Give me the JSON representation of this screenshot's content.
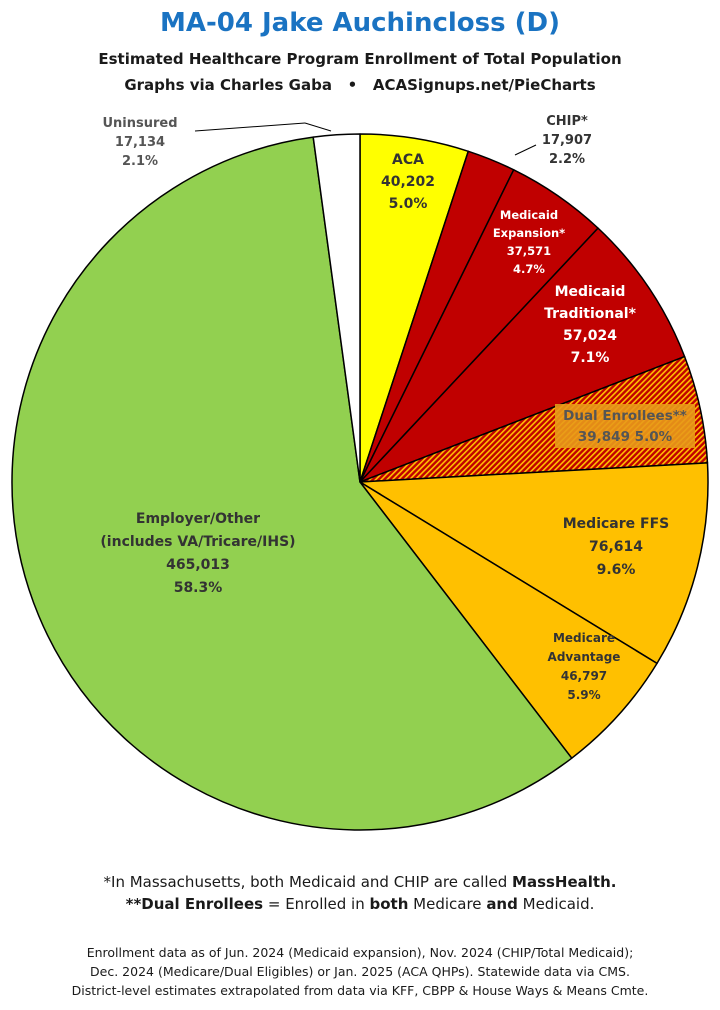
{
  "header": {
    "title": "MA-04 Jake Auchincloss (D)",
    "subtitle": "Estimated Healthcare Program Enrollment of Total Population",
    "credit_left": "Graphs via Charles Gaba",
    "credit_sep": "•",
    "credit_right": "ACASignups.net/PieCharts"
  },
  "chart_data": {
    "type": "pie",
    "title": "MA-04 Jake Auchincloss (D)",
    "subtitle": "Estimated Healthcare Program Enrollment of Total Population",
    "start_angle_deg": 0,
    "direction": "clockwise",
    "slices": [
      {
        "label": "ACA",
        "lines": [
          "ACA",
          "40,202",
          "5.0%"
        ],
        "value": 40202,
        "percent": 5.0,
        "color": "#ffff00"
      },
      {
        "label": "CHIP*",
        "lines": [
          "CHIP*",
          "17,907",
          "2.2%"
        ],
        "value": 17907,
        "percent": 2.2,
        "color": "#c00000"
      },
      {
        "label": "Medicaid Expansion*",
        "lines": [
          "Medicaid",
          "Expansion*",
          "37,571",
          "4.7%"
        ],
        "value": 37571,
        "percent": 4.7,
        "color": "#c00000"
      },
      {
        "label": "Medicaid Traditional*",
        "lines": [
          "Medicaid",
          "Traditional*",
          "57,024",
          "7.1%"
        ],
        "value": 57024,
        "percent": 7.1,
        "color": "#c00000"
      },
      {
        "label": "Dual Enrollees**",
        "lines": [
          "Dual Enrollees**",
          "39,849 5.0%"
        ],
        "value": 39849,
        "percent": 5.0,
        "color": "#c00000",
        "hatch_color": "#ffc000"
      },
      {
        "label": "Medicare FFS",
        "lines": [
          "Medicare FFS",
          "76,614",
          "9.6%"
        ],
        "value": 76614,
        "percent": 9.6,
        "color": "#ffc000"
      },
      {
        "label": "Medicare Advantage",
        "lines": [
          "Medicare",
          "Advantage",
          "46,797",
          "5.9%"
        ],
        "value": 46797,
        "percent": 5.9,
        "color": "#ffc000"
      },
      {
        "label": "Employer/Other (includes VA/Tricare/IHS)",
        "lines": [
          "Employer/Other",
          "(includes VA/Tricare/IHS)",
          "465,013",
          "58.3%"
        ],
        "value": 465013,
        "percent": 58.3,
        "color": "#92d050"
      },
      {
        "label": "Uninsured",
        "lines": [
          "Uninsured",
          "17,134",
          "2.1%"
        ],
        "value": 17134,
        "percent": 2.1,
        "color": "#ffffff"
      }
    ]
  },
  "footnotes": {
    "line1_prefix": "*In Massachusetts, both Medicaid and CHIP are called ",
    "line1_bold": "MassHealth.",
    "line2_a": "**Dual Enrollees",
    "line2_b": " = Enrolled in ",
    "line2_c": "both",
    "line2_d": " Medicare ",
    "line2_e": "and",
    "line2_f": " Medicaid."
  },
  "source_notes": [
    "Enrollment data as of Jun. 2024 (Medicaid expansion), Nov. 2024 (CHIP/Total Medicaid);",
    "Dec. 2024 (Medicare/Dual Eligibles) or Jan. 2025 (ACA QHPs). Statewide data via CMS.",
    "District-level estimates extrapolated from data via KFF, CBPP & House Ways & Means Cmte."
  ]
}
